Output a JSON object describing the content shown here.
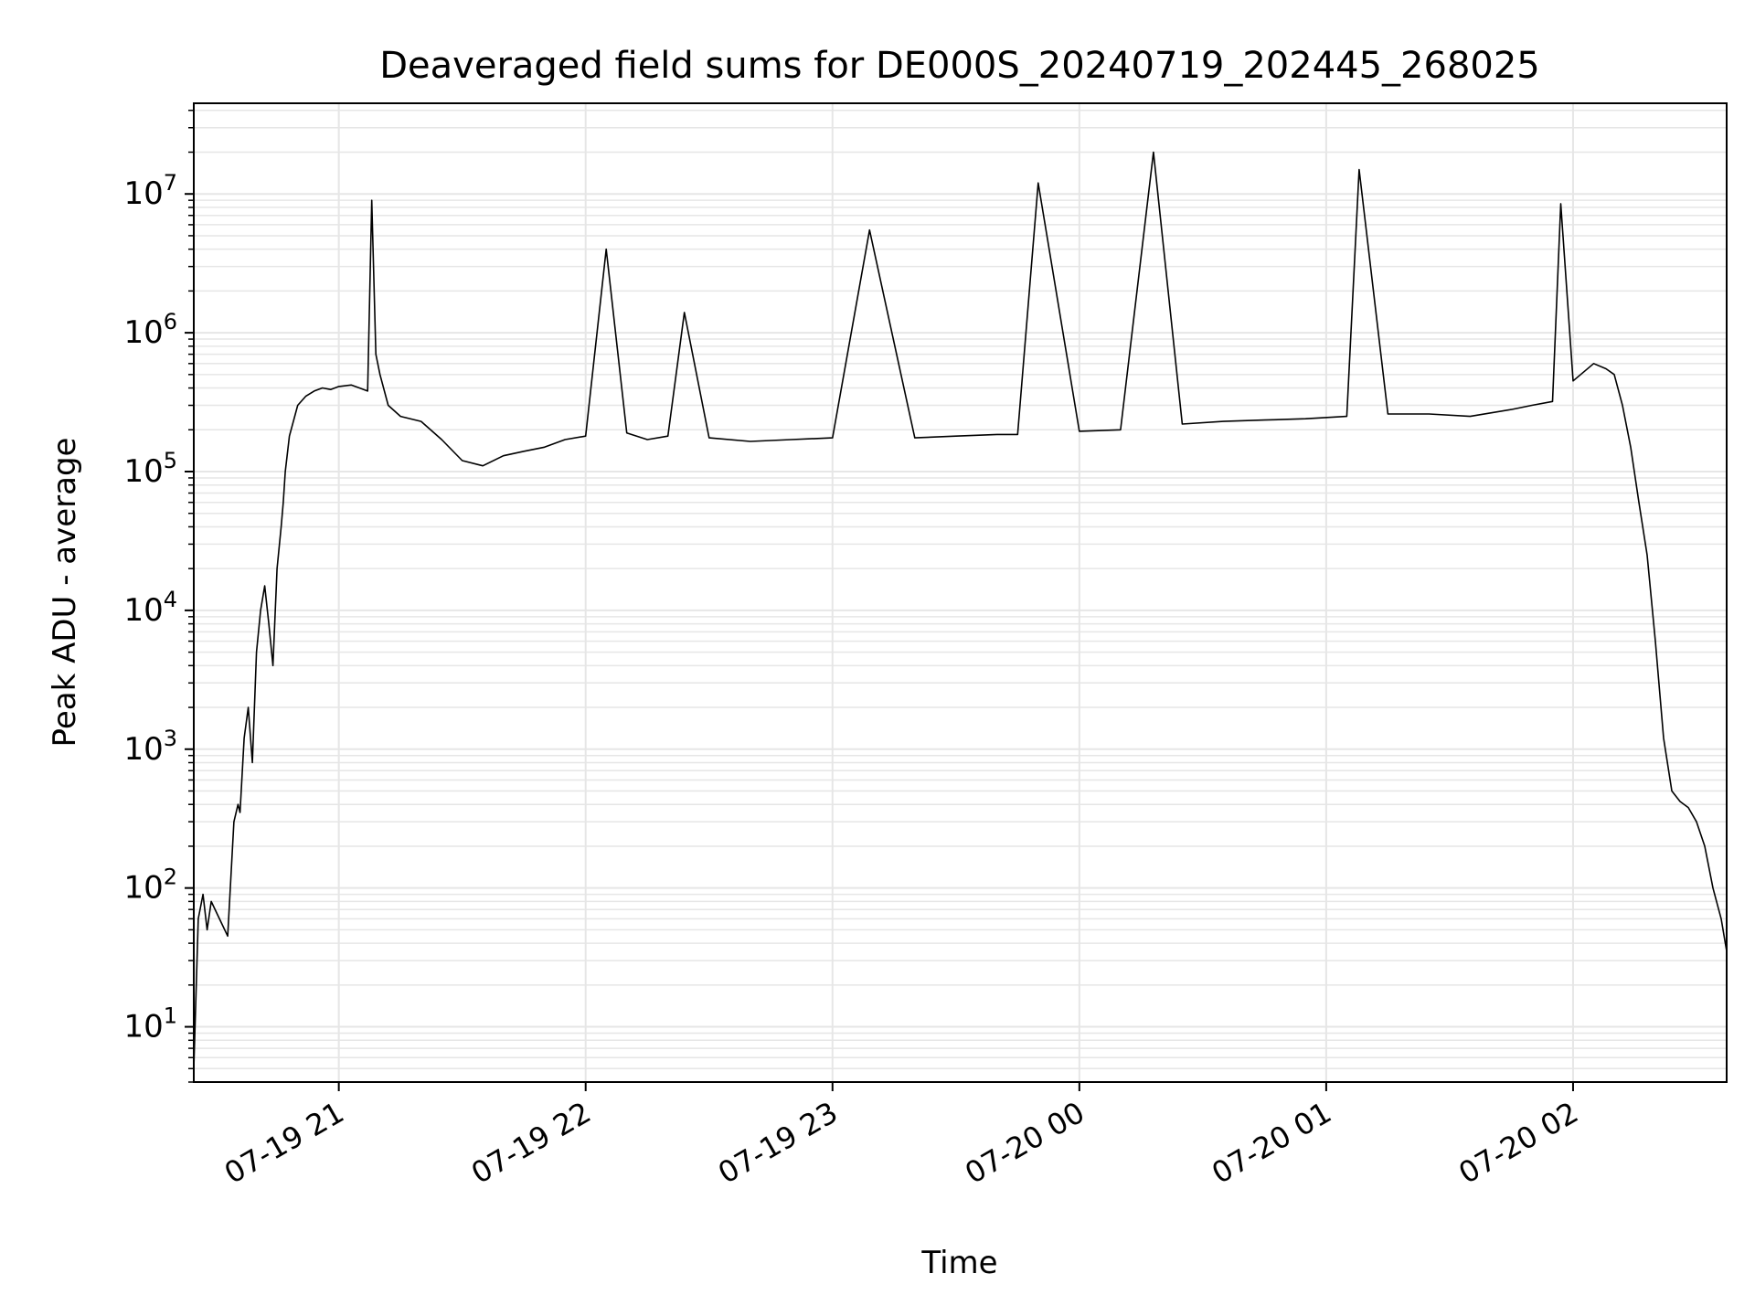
{
  "chart_data": {
    "type": "line",
    "title": "Deaveraged field sums for DE000S_20240719_202445_268025",
    "xlabel": "Time",
    "ylabel": "Peak ADU - average",
    "yscale": "log",
    "ylim": [
      4,
      45000000
    ],
    "xlim": [
      "2024-07-19 20:24:45",
      "2024-07-20 02:37:20"
    ],
    "grid": true,
    "line_color": "#000000",
    "grid_color": "#e6e6e6",
    "x_ticks": [
      {
        "value": "2024-07-19 21:00",
        "label": "07-19 21"
      },
      {
        "value": "2024-07-19 22:00",
        "label": "07-19 22"
      },
      {
        "value": "2024-07-19 23:00",
        "label": "07-19 23"
      },
      {
        "value": "2024-07-20 00:00",
        "label": "07-20 00"
      },
      {
        "value": "2024-07-20 01:00",
        "label": "07-20 01"
      },
      {
        "value": "2024-07-20 02:00",
        "label": "07-20 02"
      }
    ],
    "y_ticks": [
      {
        "value": 10,
        "base": "10",
        "exp": "1"
      },
      {
        "value": 100,
        "base": "10",
        "exp": "2"
      },
      {
        "value": 1000,
        "base": "10",
        "exp": "3"
      },
      {
        "value": 10000,
        "base": "10",
        "exp": "4"
      },
      {
        "value": 100000,
        "base": "10",
        "exp": "5"
      },
      {
        "value": 1000000,
        "base": "10",
        "exp": "6"
      },
      {
        "value": 10000000,
        "base": "10",
        "exp": "7"
      }
    ],
    "series": [
      {
        "x": [
          "2024-07-19 20:24:45",
          "2024-07-19 20:25:50",
          "2024-07-19 20:27:00",
          "2024-07-19 20:28:00",
          "2024-07-19 20:29:00",
          "2024-07-19 20:31:00",
          "2024-07-19 20:33:00",
          "2024-07-19 20:34:30",
          "2024-07-19 20:35:30",
          "2024-07-19 20:36:00",
          "2024-07-19 20:37:00",
          "2024-07-19 20:38:00",
          "2024-07-19 20:39:00",
          "2024-07-19 20:40:00",
          "2024-07-19 20:41:00",
          "2024-07-19 20:42:00",
          "2024-07-19 20:43:00",
          "2024-07-19 20:44:00",
          "2024-07-19 20:45:00",
          "2024-07-19 20:46:00",
          "2024-07-19 20:46:30",
          "2024-07-19 20:47:00",
          "2024-07-19 20:48:00",
          "2024-07-19 20:50:00",
          "2024-07-19 20:52:00",
          "2024-07-19 20:54:00",
          "2024-07-19 20:56:00",
          "2024-07-19 20:58:00",
          "2024-07-19 21:00:00",
          "2024-07-19 21:03:00",
          "2024-07-19 21:05:00",
          "2024-07-19 21:07:00",
          "2024-07-19 21:08:00",
          "2024-07-19 21:09:00",
          "2024-07-19 21:10:00",
          "2024-07-19 21:12:00",
          "2024-07-19 21:15:00",
          "2024-07-19 21:20:00",
          "2024-07-19 21:25:00",
          "2024-07-19 21:30:00",
          "2024-07-19 21:35:00",
          "2024-07-19 21:40:00",
          "2024-07-19 21:45:00",
          "2024-07-19 21:50:00",
          "2024-07-19 21:55:00",
          "2024-07-19 22:00:00",
          "2024-07-19 22:05:00",
          "2024-07-19 22:10:00",
          "2024-07-19 22:15:00",
          "2024-07-19 22:20:00",
          "2024-07-19 22:24:00",
          "2024-07-19 22:30:00",
          "2024-07-19 22:40:00",
          "2024-07-19 22:50:00",
          "2024-07-19 23:00:00",
          "2024-07-19 23:09:00",
          "2024-07-19 23:20:00",
          "2024-07-19 23:30:00",
          "2024-07-19 23:40:00",
          "2024-07-19 23:45:00",
          "2024-07-19 23:50:00",
          "2024-07-20 00:00:00",
          "2024-07-20 00:10:00",
          "2024-07-20 00:18:00",
          "2024-07-20 00:25:00",
          "2024-07-20 00:35:00",
          "2024-07-20 00:45:00",
          "2024-07-20 00:55:00",
          "2024-07-20 01:05:00",
          "2024-07-20 01:08:00",
          "2024-07-20 01:15:00",
          "2024-07-20 01:25:00",
          "2024-07-20 01:35:00",
          "2024-07-20 01:45:00",
          "2024-07-20 01:50:00",
          "2024-07-20 01:55:00",
          "2024-07-20 01:57:00",
          "2024-07-20 02:00:00",
          "2024-07-20 02:05:00",
          "2024-07-20 02:08:00",
          "2024-07-20 02:10:00",
          "2024-07-20 02:12:00",
          "2024-07-20 02:14:00",
          "2024-07-20 02:16:00",
          "2024-07-20 02:18:00",
          "2024-07-20 02:20:00",
          "2024-07-20 02:22:00",
          "2024-07-20 02:24:00",
          "2024-07-20 02:26:00",
          "2024-07-20 02:28:00",
          "2024-07-20 02:30:00",
          "2024-07-20 02:32:00",
          "2024-07-20 02:34:00",
          "2024-07-20 02:36:00",
          "2024-07-20 02:37:20"
        ],
        "y": [
          5,
          60,
          90,
          50,
          80,
          60,
          45,
          300,
          400,
          350,
          1200,
          2000,
          800,
          5000,
          10000,
          15000,
          8000,
          4000,
          20000,
          40000,
          60000,
          100000,
          180000,
          300000,
          350000,
          380000,
          400000,
          390000,
          410000,
          420000,
          400000,
          380000,
          9000000,
          700000,
          500000,
          300000,
          250000,
          230000,
          170000,
          120000,
          110000,
          130000,
          140000,
          150000,
          170000,
          180000,
          4000000,
          190000,
          170000,
          180000,
          1400000,
          175000,
          165000,
          170000,
          175000,
          5500000,
          175000,
          180000,
          185000,
          185000,
          12000000,
          195000,
          200000,
          20000000,
          220000,
          230000,
          235000,
          240000,
          250000,
          15000000,
          260000,
          260000,
          250000,
          280000,
          300000,
          320000,
          8500000,
          450000,
          600000,
          550000,
          500000,
          300000,
          150000,
          60000,
          25000,
          6000,
          1200,
          500,
          420,
          380,
          300,
          200,
          100,
          60,
          35
        ]
      }
    ]
  }
}
